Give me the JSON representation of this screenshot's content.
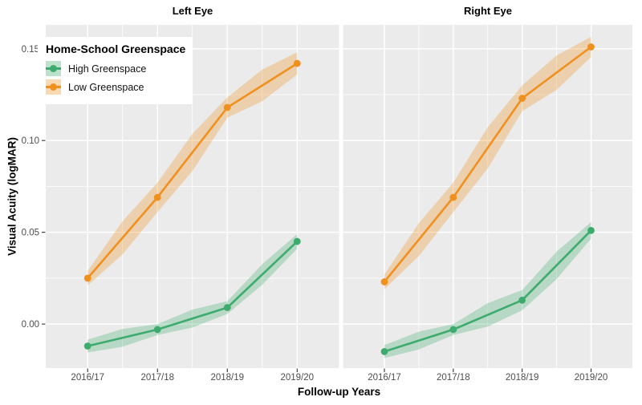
{
  "chart_data": {
    "type": "line",
    "categories": [
      "2016/17",
      "2017/18",
      "2018/19",
      "2019/20"
    ],
    "xlabel": "Follow-up Years",
    "ylabel": "Visual Acuity (logMAR)",
    "yticks": [
      0,
      0.05,
      0.1,
      0.15
    ],
    "ytick_labels": [
      "0.00",
      "0.05",
      "0.10",
      "0.15"
    ],
    "yticks_minor": [
      0.025,
      0.075,
      0.125
    ],
    "ylim": [
      -0.024,
      0.163
    ],
    "grid": true,
    "legend": {
      "title": "Home-School Greenspace",
      "position": "top-left-inside",
      "entries": [
        {
          "label": "High Greenspace",
          "color": "#3EAB6E"
        },
        {
          "label": "Low Greenspace",
          "color": "#F0901E"
        }
      ]
    },
    "facets": [
      {
        "label": "Left Eye",
        "series": [
          {
            "name": "High Greenspace",
            "color": "#3EAB6E",
            "values": [
              -0.012,
              -0.003,
              0.009,
              0.045
            ],
            "ci_halfwidth": [
              0.0035,
              0.003,
              0.0035,
              0.004
            ]
          },
          {
            "name": "Low Greenspace",
            "color": "#F0901E",
            "values": [
              0.025,
              0.069,
              0.118,
              0.142
            ],
            "ci_halfwidth": [
              0.004,
              0.008,
              0.0055,
              0.006
            ]
          }
        ]
      },
      {
        "label": "Right Eye",
        "series": [
          {
            "name": "High Greenspace",
            "color": "#3EAB6E",
            "values": [
              -0.015,
              -0.003,
              0.013,
              0.051
            ],
            "ci_halfwidth": [
              0.0035,
              0.003,
              0.0055,
              0.0045
            ]
          },
          {
            "name": "Low Greenspace",
            "color": "#F0901E",
            "values": [
              0.023,
              0.069,
              0.123,
              0.151
            ],
            "ci_halfwidth": [
              0.004,
              0.008,
              0.007,
              0.0055
            ]
          }
        ]
      }
    ],
    "style": {
      "panel_bg": "#EBEBEB",
      "grid_color": "#FFFFFF",
      "tick_text_color": "#4D4D4D",
      "tick_mark_color": "#333333",
      "ribbon_opacity": 0.3,
      "legend_key_opacity": 0.35
    }
  }
}
